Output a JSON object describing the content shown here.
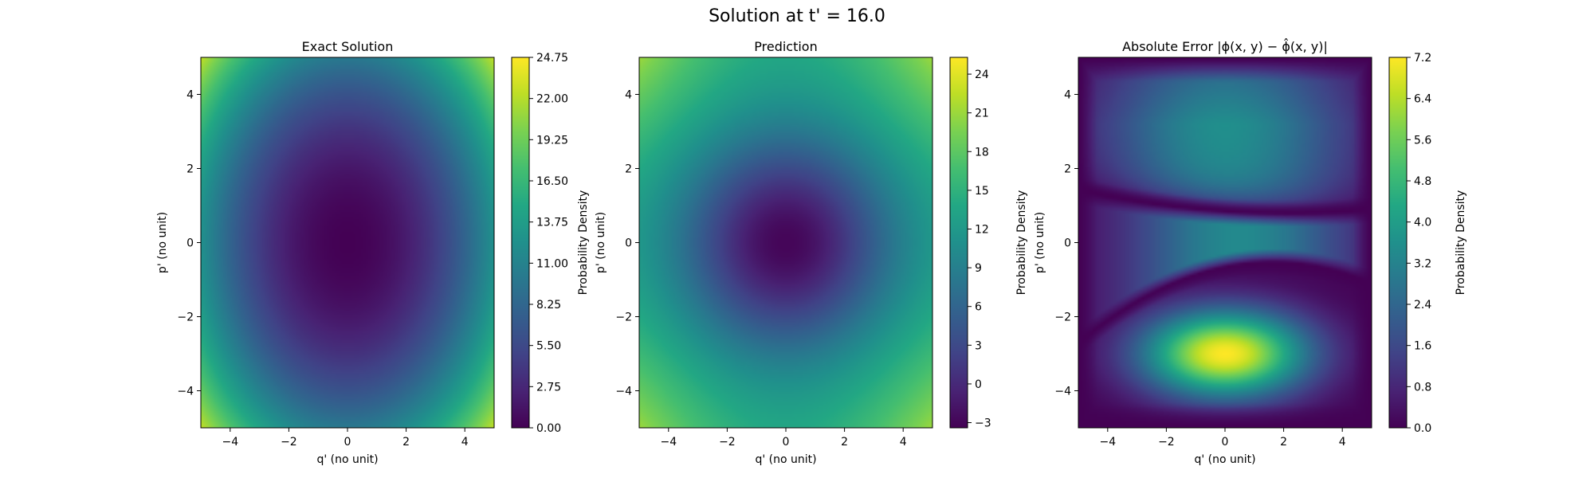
{
  "figure": {
    "title": "Solution at t' = 16.0"
  },
  "chart_data": [
    {
      "type": "heatmap",
      "title": "Exact Solution",
      "xlabel": "q' (no unit)",
      "ylabel": "p' (no unit)",
      "xlim": [
        -5,
        5
      ],
      "ylim": [
        -5,
        5
      ],
      "xticks": [
        -4,
        -2,
        0,
        2,
        4
      ],
      "yticks": [
        -4,
        -2,
        0,
        2,
        4
      ],
      "xtick_labels": [
        "−4",
        "−2",
        "0",
        "2",
        "4"
      ],
      "ytick_labels": [
        "−4",
        "−2",
        "0",
        "2",
        "4"
      ],
      "colormap": "viridis",
      "colorbar": {
        "label": "Probability Density",
        "range": [
          0,
          24.75
        ],
        "ticks": [
          0,
          2.75,
          5.5,
          8.25,
          11,
          13.75,
          16.5,
          19.25,
          22,
          24.75
        ],
        "tick_labels": [
          "0.00",
          "2.75",
          "5.50",
          "8.25",
          "11.00",
          "13.75",
          "16.50",
          "19.25",
          "22.00",
          "24.75"
        ]
      },
      "field": {
        "form": "quadratic",
        "center": [
          0,
          0
        ],
        "a": 0.5,
        "b": 0.4,
        "offset": 0
      }
    },
    {
      "type": "heatmap",
      "title": "Prediction",
      "xlabel": "q' (no unit)",
      "ylabel": "p' (no unit)",
      "xlim": [
        -5,
        5
      ],
      "ylim": [
        -5,
        5
      ],
      "xticks": [
        -4,
        -2,
        0,
        2,
        4
      ],
      "yticks": [
        -4,
        -2,
        0,
        2,
        4
      ],
      "xtick_labels": [
        "−4",
        "−2",
        "0",
        "2",
        "4"
      ],
      "ytick_labels": [
        "−4",
        "−2",
        "0",
        "2",
        "4"
      ],
      "colormap": "viridis",
      "colorbar": {
        "label": "Probability Density",
        "range": [
          -3.4,
          25.3
        ],
        "ticks": [
          -3,
          0,
          3,
          6,
          9,
          12,
          15,
          18,
          21,
          24
        ],
        "tick_labels": [
          "−3",
          "0",
          "3",
          "6",
          "9",
          "12",
          "15",
          "18",
          "21",
          "24"
        ]
      },
      "field": {
        "form": "quadratic-saturating",
        "center": [
          0,
          0
        ],
        "a": 0.9,
        "b": 1.1,
        "offset": -3,
        "rise": 18,
        "scale": 0.35,
        "corner_boost": 0.25
      }
    },
    {
      "type": "heatmap",
      "title": "Absolute Error |ϕ(x, y) − ϕ̂(x, y)|",
      "xlabel": "q' (no unit)",
      "ylabel": "p' (no unit)",
      "xlim": [
        -5,
        5
      ],
      "ylim": [
        -5,
        5
      ],
      "xticks": [
        -4,
        -2,
        0,
        2,
        4
      ],
      "yticks": [
        -4,
        -2,
        0,
        2,
        4
      ],
      "xtick_labels": [
        "−4",
        "−2",
        "0",
        "2",
        "4"
      ],
      "ytick_labels": [
        "−4",
        "−2",
        "0",
        "2",
        "4"
      ],
      "colormap": "viridis",
      "colorbar": {
        "label": "Probability Density",
        "range": [
          0,
          7.2
        ],
        "ticks": [
          0,
          0.8,
          1.6,
          2.4,
          3.2,
          4.0,
          4.8,
          5.6,
          6.4,
          7.2
        ],
        "tick_labels": [
          "0.0",
          "0.8",
          "1.6",
          "2.4",
          "3.2",
          "4.0",
          "4.8",
          "5.6",
          "6.4",
          "7.2"
        ]
      },
      "field": {
        "form": "error-bands",
        "peak_center": [
          0,
          -3
        ],
        "peak_value": 7.2,
        "upper_band_value": 3.6,
        "middle_band_value": 3.4
      }
    }
  ]
}
